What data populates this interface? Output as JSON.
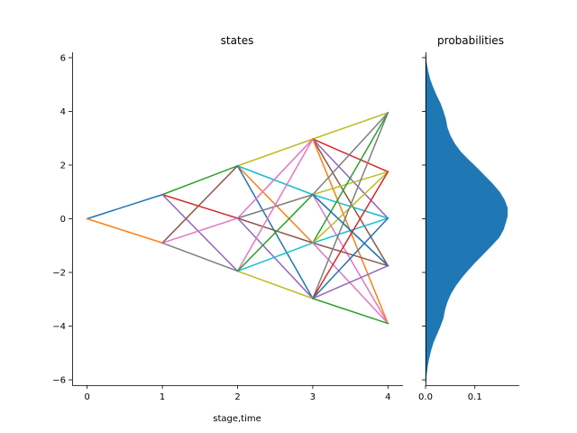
{
  "chart_data": [
    {
      "type": "line",
      "title": "states",
      "xlabel": "stage,time",
      "ylabel": "",
      "xlim": [
        -0.2,
        4.2
      ],
      "ylim": [
        -6.2,
        6.2
      ],
      "xticks": [
        0,
        1,
        2,
        3,
        4
      ],
      "xtick_labels": [
        "0",
        "1",
        "2",
        "3",
        "4"
      ],
      "yticks": [
        -6,
        -4,
        -2,
        0,
        2,
        4,
        6
      ],
      "ytick_labels": [
        "−6",
        "−4",
        "−2",
        "0",
        "2",
        "4",
        "6"
      ],
      "grid": false,
      "state_values": {
        "0": [
          0
        ],
        "1": [
          0.9,
          -0.9
        ],
        "2": [
          1.97,
          0.02,
          -1.95
        ],
        "3": [
          2.97,
          0.9,
          -0.9,
          -2.97
        ],
        "4": [
          3.95,
          1.75,
          0.02,
          -1.75,
          -3.9
        ]
      },
      "series": [
        {
          "color": "#1f77b4",
          "values": [
            [
              0,
              0
            ],
            [
              1,
              0.9
            ]
          ]
        },
        {
          "color": "#ff7f0e",
          "values": [
            [
              0,
              0
            ],
            [
              1,
              -0.9
            ]
          ]
        },
        {
          "color": "#2ca02c",
          "values": [
            [
              1,
              0.9
            ],
            [
              2,
              1.97
            ]
          ]
        },
        {
          "color": "#d62728",
          "values": [
            [
              1,
              0.9
            ],
            [
              2,
              0.02
            ]
          ]
        },
        {
          "color": "#9467bd",
          "values": [
            [
              1,
              0.9
            ],
            [
              2,
              -1.95
            ]
          ]
        },
        {
          "color": "#8c564b",
          "values": [
            [
              1,
              -0.9
            ],
            [
              2,
              1.97
            ]
          ]
        },
        {
          "color": "#e377c2",
          "values": [
            [
              1,
              -0.9
            ],
            [
              2,
              0.02
            ]
          ]
        },
        {
          "color": "#7f7f7f",
          "values": [
            [
              1,
              -0.9
            ],
            [
              2,
              -1.95
            ]
          ]
        },
        {
          "color": "#bcbd22",
          "values": [
            [
              2,
              1.97
            ],
            [
              3,
              2.97
            ]
          ]
        },
        {
          "color": "#17becf",
          "values": [
            [
              2,
              1.97
            ],
            [
              3,
              0.9
            ]
          ]
        },
        {
          "color": "#ff7f0e",
          "values": [
            [
              2,
              1.97
            ],
            [
              3,
              -0.9
            ]
          ]
        },
        {
          "color": "#1f77b4",
          "values": [
            [
              2,
              1.97
            ],
            [
              3,
              -2.97
            ]
          ]
        },
        {
          "color": "#e377c2",
          "values": [
            [
              2,
              0.02
            ],
            [
              3,
              2.97
            ]
          ]
        },
        {
          "color": "#7f7f7f",
          "values": [
            [
              2,
              0.02
            ],
            [
              3,
              0.9
            ]
          ]
        },
        {
          "color": "#8c564b",
          "values": [
            [
              2,
              0.02
            ],
            [
              3,
              -0.9
            ]
          ]
        },
        {
          "color": "#9467bd",
          "values": [
            [
              2,
              0.02
            ],
            [
              3,
              -2.97
            ]
          ]
        },
        {
          "color": "#bcbd22",
          "values": [
            [
              2,
              -1.95
            ],
            [
              3,
              -2.97
            ]
          ]
        },
        {
          "color": "#17becf",
          "values": [
            [
              2,
              -1.95
            ],
            [
              3,
              -0.9
            ]
          ]
        },
        {
          "color": "#e377c2",
          "values": [
            [
              2,
              -1.95
            ],
            [
              3,
              2.97
            ]
          ]
        },
        {
          "color": "#2ca02c",
          "values": [
            [
              2,
              -1.95
            ],
            [
              3,
              0.9
            ]
          ]
        },
        {
          "color": "#bcbd22",
          "values": [
            [
              3,
              2.97
            ],
            [
              4,
              3.95
            ]
          ]
        },
        {
          "color": "#d62728",
          "values": [
            [
              3,
              2.97
            ],
            [
              4,
              1.75
            ]
          ]
        },
        {
          "color": "#9467bd",
          "values": [
            [
              3,
              2.97
            ],
            [
              4,
              0.02
            ]
          ]
        },
        {
          "color": "#8c564b",
          "values": [
            [
              3,
              2.97
            ],
            [
              4,
              -1.75
            ]
          ]
        },
        {
          "color": "#ff7f0e",
          "values": [
            [
              3,
              2.97
            ],
            [
              4,
              -3.9
            ]
          ]
        },
        {
          "color": "#7f7f7f",
          "values": [
            [
              3,
              0.9
            ],
            [
              4,
              3.95
            ]
          ]
        },
        {
          "color": "#bcbd22",
          "values": [
            [
              3,
              0.9
            ],
            [
              4,
              1.75
            ]
          ]
        },
        {
          "color": "#17becf",
          "values": [
            [
              3,
              0.9
            ],
            [
              4,
              0.02
            ]
          ]
        },
        {
          "color": "#9467bd",
          "values": [
            [
              3,
              0.9
            ],
            [
              4,
              -1.75
            ]
          ]
        },
        {
          "color": "#e377c2",
          "values": [
            [
              3,
              0.9
            ],
            [
              4,
              -3.9
            ]
          ]
        },
        {
          "color": "#2ca02c",
          "values": [
            [
              3,
              -0.9
            ],
            [
              4,
              3.95
            ]
          ]
        },
        {
          "color": "#bcbd22",
          "values": [
            [
              3,
              -0.9
            ],
            [
              4,
              1.75
            ]
          ]
        },
        {
          "color": "#17becf",
          "values": [
            [
              3,
              -0.9
            ],
            [
              4,
              0.02
            ]
          ]
        },
        {
          "color": "#8c564b",
          "values": [
            [
              3,
              -0.9
            ],
            [
              4,
              -1.75
            ]
          ]
        },
        {
          "color": "#e377c2",
          "values": [
            [
              3,
              -0.9
            ],
            [
              4,
              -3.9
            ]
          ]
        },
        {
          "color": "#7f7f7f",
          "values": [
            [
              3,
              -2.97
            ],
            [
              4,
              3.95
            ]
          ]
        },
        {
          "color": "#d62728",
          "values": [
            [
              3,
              -2.97
            ],
            [
              4,
              1.75
            ]
          ]
        },
        {
          "color": "#1f77b4",
          "values": [
            [
              3,
              -2.97
            ],
            [
              4,
              0.02
            ]
          ]
        },
        {
          "color": "#9467bd",
          "values": [
            [
              3,
              -2.97
            ],
            [
              4,
              -1.75
            ]
          ]
        },
        {
          "color": "#2ca02c",
          "values": [
            [
              3,
              -2.97
            ],
            [
              4,
              -3.9
            ]
          ]
        },
        {
          "color": "#1f77b4",
          "values": [
            [
              4,
              -1.75
            ],
            [
              3,
              0.9
            ]
          ]
        }
      ]
    },
    {
      "type": "area",
      "title": "probabilities",
      "xlabel": "",
      "ylabel": "",
      "xlim": [
        0,
        0.19
      ],
      "ylim": [
        -6.2,
        6.2
      ],
      "xticks": [
        0.0,
        0.1
      ],
      "xtick_labels": [
        "0.0",
        "0.1"
      ],
      "grid": false,
      "color": "#1f77b4",
      "density": [
        [
          -6.1,
          0.0
        ],
        [
          -5.8,
          0.002
        ],
        [
          -5.5,
          0.004
        ],
        [
          -5.2,
          0.007
        ],
        [
          -4.9,
          0.011
        ],
        [
          -4.6,
          0.016
        ],
        [
          -4.3,
          0.023
        ],
        [
          -4.0,
          0.03
        ],
        [
          -3.7,
          0.036
        ],
        [
          -3.4,
          0.039
        ],
        [
          -3.1,
          0.044
        ],
        [
          -2.8,
          0.051
        ],
        [
          -2.5,
          0.061
        ],
        [
          -2.2,
          0.073
        ],
        [
          -1.9,
          0.087
        ],
        [
          -1.6,
          0.102
        ],
        [
          -1.3,
          0.118
        ],
        [
          -1.0,
          0.134
        ],
        [
          -0.7,
          0.149
        ],
        [
          -0.4,
          0.158
        ],
        [
          -0.1,
          0.163
        ],
        [
          0.1,
          0.166
        ],
        [
          0.4,
          0.166
        ],
        [
          0.7,
          0.16
        ],
        [
          1.0,
          0.15
        ],
        [
          1.3,
          0.136
        ],
        [
          1.6,
          0.12
        ],
        [
          1.9,
          0.104
        ],
        [
          2.2,
          0.087
        ],
        [
          2.5,
          0.071
        ],
        [
          2.8,
          0.059
        ],
        [
          3.1,
          0.05
        ],
        [
          3.4,
          0.044
        ],
        [
          3.7,
          0.041
        ],
        [
          4.0,
          0.036
        ],
        [
          4.3,
          0.03
        ],
        [
          4.6,
          0.022
        ],
        [
          4.9,
          0.015
        ],
        [
          5.2,
          0.009
        ],
        [
          5.5,
          0.005
        ],
        [
          5.8,
          0.002
        ],
        [
          6.1,
          0.0
        ]
      ]
    }
  ]
}
